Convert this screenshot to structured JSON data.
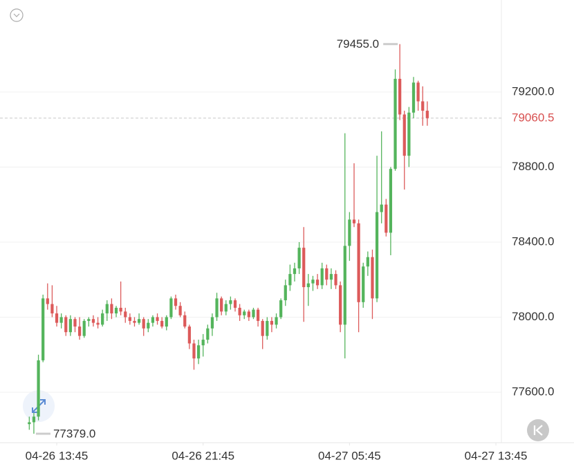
{
  "chart_data": {
    "type": "candlestick",
    "open": [
      77430,
      77440,
      77470,
      77770,
      78100,
      78070,
      78020,
      77970,
      78000,
      77920,
      77990,
      77950,
      77900,
      77980,
      77990,
      77970,
      77960,
      78020,
      78070,
      78020,
      78050,
      78030,
      78000,
      77980,
      77970,
      77990,
      77940,
      77970,
      78000,
      77980,
      77950,
      78000,
      78100,
      78060,
      78010,
      77950,
      77860,
      77780,
      77850,
      77880,
      77940,
      78000,
      78100,
      78030,
      78070,
      78090,
      78050,
      78010,
      78030,
      78000,
      78040,
      77980,
      77900,
      77980,
      77960,
      78000,
      78090,
      78170,
      78230,
      78260,
      78370,
      78160,
      78180,
      78200,
      78170,
      78260,
      78200,
      78230,
      78170,
      77960,
      78380,
      78520,
      78500,
      78080,
      78270,
      78320,
      78100,
      78560,
      78600,
      78450,
      78790,
      79270,
      79080,
      78860,
      79090,
      79250,
      79150,
      79100
    ],
    "high": [
      77470,
      77490,
      77800,
      78120,
      78180,
      78170,
      78060,
      78020,
      78010,
      78010,
      78000,
      78000,
      77990,
      78000,
      78010,
      78000,
      78040,
      78090,
      78100,
      78060,
      78190,
      78050,
      78020,
      78000,
      78020,
      78000,
      77990,
      78010,
      78020,
      78000,
      78010,
      78110,
      78120,
      78080,
      78030,
      77960,
      77880,
      77880,
      77910,
      77960,
      78020,
      78130,
      78110,
      78090,
      78110,
      78100,
      78070,
      78040,
      78040,
      78050,
      78050,
      77990,
      78000,
      78000,
      78020,
      78100,
      78200,
      78280,
      78290,
      78400,
      78480,
      78230,
      78220,
      78230,
      78290,
      78280,
      78260,
      78250,
      78190,
      78980,
      78560,
      78820,
      78520,
      78290,
      78350,
      78360,
      78860,
      78990,
      78630,
      78800,
      79320,
      79455,
      79100,
      79120,
      79280,
      79260,
      79230,
      79150
    ],
    "low": [
      77400,
      77379,
      77450,
      77760,
      78040,
      78000,
      77950,
      77940,
      77900,
      77900,
      77920,
      77880,
      77890,
      77950,
      77950,
      77940,
      77950,
      77980,
      77990,
      78000,
      78010,
      77970,
      77960,
      77950,
      77960,
      77900,
      77920,
      77950,
      77960,
      77940,
      77930,
      77990,
      78040,
      78000,
      77940,
      77830,
      77720,
      77750,
      77790,
      77860,
      77900,
      77980,
      78010,
      78010,
      78040,
      78030,
      77980,
      77990,
      77980,
      77990,
      77950,
      77830,
      77880,
      77920,
      77940,
      77990,
      78060,
      78140,
      78190,
      78230,
      77975,
      78060,
      78140,
      78150,
      78150,
      78170,
      78150,
      78150,
      77920,
      77780,
      78300,
      78480,
      77920,
      78050,
      78220,
      77990,
      78080,
      78500,
      78430,
      78330,
      78780,
      79050,
      78680,
      78800,
      79060,
      79100,
      79020,
      79020
    ],
    "close": [
      77440,
      77470,
      77770,
      78100,
      78070,
      78020,
      77970,
      78000,
      77920,
      77990,
      77950,
      77900,
      77980,
      77990,
      77970,
      77960,
      78020,
      78070,
      78020,
      78050,
      78030,
      78000,
      77980,
      77970,
      77990,
      77940,
      77970,
      78000,
      77980,
      77950,
      78000,
      78100,
      78060,
      78010,
      77950,
      77860,
      77780,
      77850,
      77880,
      77940,
      78000,
      78100,
      78030,
      78070,
      78090,
      78050,
      78010,
      78030,
      78000,
      78040,
      77980,
      77900,
      77980,
      77960,
      78000,
      78090,
      78170,
      78230,
      78260,
      78370,
      78160,
      78180,
      78200,
      78170,
      78260,
      78200,
      78230,
      78170,
      77960,
      78380,
      78520,
      78500,
      78080,
      78270,
      78320,
      78100,
      78560,
      78600,
      78450,
      78790,
      79270,
      79080,
      78860,
      79090,
      79250,
      79150,
      79100,
      79060.5
    ],
    "up_color": "#54b45c",
    "down_color": "#dc5a5a",
    "xlim": [
      -6.4,
      103.2
    ],
    "xticks": [
      {
        "value": 6,
        "label": "04-26 13:45"
      },
      {
        "value": 38,
        "label": "04-26 21:45"
      },
      {
        "value": 70,
        "label": "04-27 05:45"
      },
      {
        "value": 102,
        "label": "04-27 13:45"
      }
    ],
    "ylim": [
      77331,
      79690
    ],
    "yticks": [
      {
        "value": 77600,
        "label": "77600.0"
      },
      {
        "value": 78000,
        "label": "78000.0"
      },
      {
        "value": 78400,
        "label": "78400.0"
      },
      {
        "value": 78800,
        "label": "78800.0"
      },
      {
        "value": 79200,
        "label": "79200.0"
      }
    ],
    "grid": true,
    "last_price": 79060.5,
    "max_marker": {
      "index": 81,
      "value": 79455,
      "label": "79455.0"
    },
    "min_marker": {
      "index": 1,
      "value": 77379,
      "label": "77379.0"
    }
  }
}
